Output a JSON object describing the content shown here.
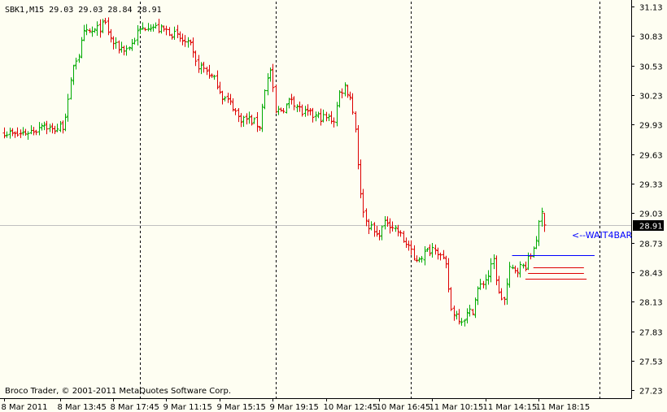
{
  "header": {
    "symbol_text": "SBK1,M15  29.03 29.03 28.84 28.91"
  },
  "footer": {
    "copyright": "Broco Trader, © 2001-2011 MetaQuotes Software Corp."
  },
  "annotation": {
    "label": "<--WAIT4BAR",
    "color": "#0000ff"
  },
  "colors": {
    "background": "#fefef2",
    "bull": "#00aa00",
    "bear": "#dd0000",
    "axis": "#000000",
    "price_line": "#c0c0c0",
    "price_tag_bg": "#000000",
    "price_tag_fg": "#ffffff",
    "blue_level": "#0000ff",
    "red_level": "#dd0000"
  },
  "chart_data": {
    "type": "candlestick",
    "symbol": "SBK1",
    "timeframe": "M15",
    "last_ohlc": {
      "open": 29.03,
      "high": 29.03,
      "low": 28.84,
      "close": 28.91
    },
    "current_price": 28.91,
    "current_price_label": "28.91",
    "ylim": [
      27.15,
      31.18
    ],
    "y_ticks": [
      {
        "value": 31.13,
        "label": "31.13"
      },
      {
        "value": 30.83,
        "label": "30.83"
      },
      {
        "value": 30.53,
        "label": "30.53"
      },
      {
        "value": 30.23,
        "label": "30.23"
      },
      {
        "value": 29.93,
        "label": "29.93"
      },
      {
        "value": 29.63,
        "label": "29.63"
      },
      {
        "value": 29.33,
        "label": "29.33"
      },
      {
        "value": 29.03,
        "label": "29.03"
      },
      {
        "value": 28.73,
        "label": "28.73"
      },
      {
        "value": 28.43,
        "label": "28.43"
      },
      {
        "value": 28.13,
        "label": "28.13"
      },
      {
        "value": 27.83,
        "label": "27.83"
      },
      {
        "value": 27.53,
        "label": "27.53"
      },
      {
        "value": 27.23,
        "label": "27.23"
      }
    ],
    "x_ticks": [
      {
        "bar": 0,
        "label": "8 Mar 2011"
      },
      {
        "bar": 21,
        "label": "8 Mar 13:45"
      },
      {
        "bar": 41,
        "label": "8 Mar 17:45"
      },
      {
        "bar": 61,
        "label": "9 Mar 11:15"
      },
      {
        "bar": 81,
        "label": "9 Mar 15:15"
      },
      {
        "bar": 101,
        "label": "9 Mar 19:15"
      },
      {
        "bar": 121,
        "label": "10 Mar 12:45"
      },
      {
        "bar": 141,
        "label": "10 Mar 16:45"
      },
      {
        "bar": 161,
        "label": "11 Mar 10:15"
      },
      {
        "bar": 181,
        "label": "11 Mar 14:15"
      },
      {
        "bar": 201,
        "label": "11 Mar 18:15"
      }
    ],
    "session_separators": [
      51,
      102,
      153,
      224
    ],
    "levels": [
      {
        "price": 28.6,
        "from_bar": 191,
        "to_bar": 222,
        "color": "#0000ff"
      },
      {
        "price": 28.48,
        "from_bar": 199,
        "to_bar": 218,
        "color": "#dd0000"
      },
      {
        "price": 28.42,
        "from_bar": 197,
        "to_bar": 218,
        "color": "#dd0000"
      },
      {
        "price": 28.36,
        "from_bar": 196,
        "to_bar": 219,
        "color": "#dd0000"
      }
    ],
    "anchors": [
      [
        0,
        29.86
      ],
      [
        4,
        29.82
      ],
      [
        8,
        29.85
      ],
      [
        12,
        29.88
      ],
      [
        14,
        29.95
      ],
      [
        18,
        29.87
      ],
      [
        22,
        29.92
      ],
      [
        24,
        30.15
      ],
      [
        26,
        30.55
      ],
      [
        28,
        30.65
      ],
      [
        30,
        30.85
      ],
      [
        34,
        30.88
      ],
      [
        38,
        30.95
      ],
      [
        40,
        30.8
      ],
      [
        42,
        30.72
      ],
      [
        46,
        30.7
      ],
      [
        48,
        30.75
      ],
      [
        50,
        30.86
      ],
      [
        54,
        30.95
      ],
      [
        58,
        30.9
      ],
      [
        62,
        30.88
      ],
      [
        66,
        30.8
      ],
      [
        70,
        30.72
      ],
      [
        72,
        30.55
      ],
      [
        76,
        30.48
      ],
      [
        80,
        30.35
      ],
      [
        82,
        30.22
      ],
      [
        86,
        30.12
      ],
      [
        88,
        30.0
      ],
      [
        92,
        29.98
      ],
      [
        96,
        29.92
      ],
      [
        98,
        30.3
      ],
      [
        100,
        30.48
      ],
      [
        102,
        30.05
      ],
      [
        106,
        30.12
      ],
      [
        108,
        30.2
      ],
      [
        112,
        30.05
      ],
      [
        116,
        30.02
      ],
      [
        120,
        30.0
      ],
      [
        124,
        29.98
      ],
      [
        126,
        30.25
      ],
      [
        128,
        30.32
      ],
      [
        130,
        30.22
      ],
      [
        132,
        29.9
      ],
      [
        134,
        29.2
      ],
      [
        136,
        28.95
      ],
      [
        140,
        28.8
      ],
      [
        144,
        28.95
      ],
      [
        148,
        28.85
      ],
      [
        150,
        28.75
      ],
      [
        152,
        28.7
      ],
      [
        154,
        28.55
      ],
      [
        158,
        28.62
      ],
      [
        162,
        28.7
      ],
      [
        166,
        28.48
      ],
      [
        168,
        28.05
      ],
      [
        172,
        27.95
      ],
      [
        176,
        28.05
      ],
      [
        178,
        28.25
      ],
      [
        182,
        28.4
      ],
      [
        184,
        28.55
      ],
      [
        186,
        28.2
      ],
      [
        188,
        28.15
      ],
      [
        190,
        28.45
      ],
      [
        194,
        28.48
      ],
      [
        196,
        28.5
      ],
      [
        198,
        28.6
      ],
      [
        200,
        28.78
      ],
      [
        202,
        29.03
      ],
      [
        203,
        28.91
      ]
    ]
  }
}
